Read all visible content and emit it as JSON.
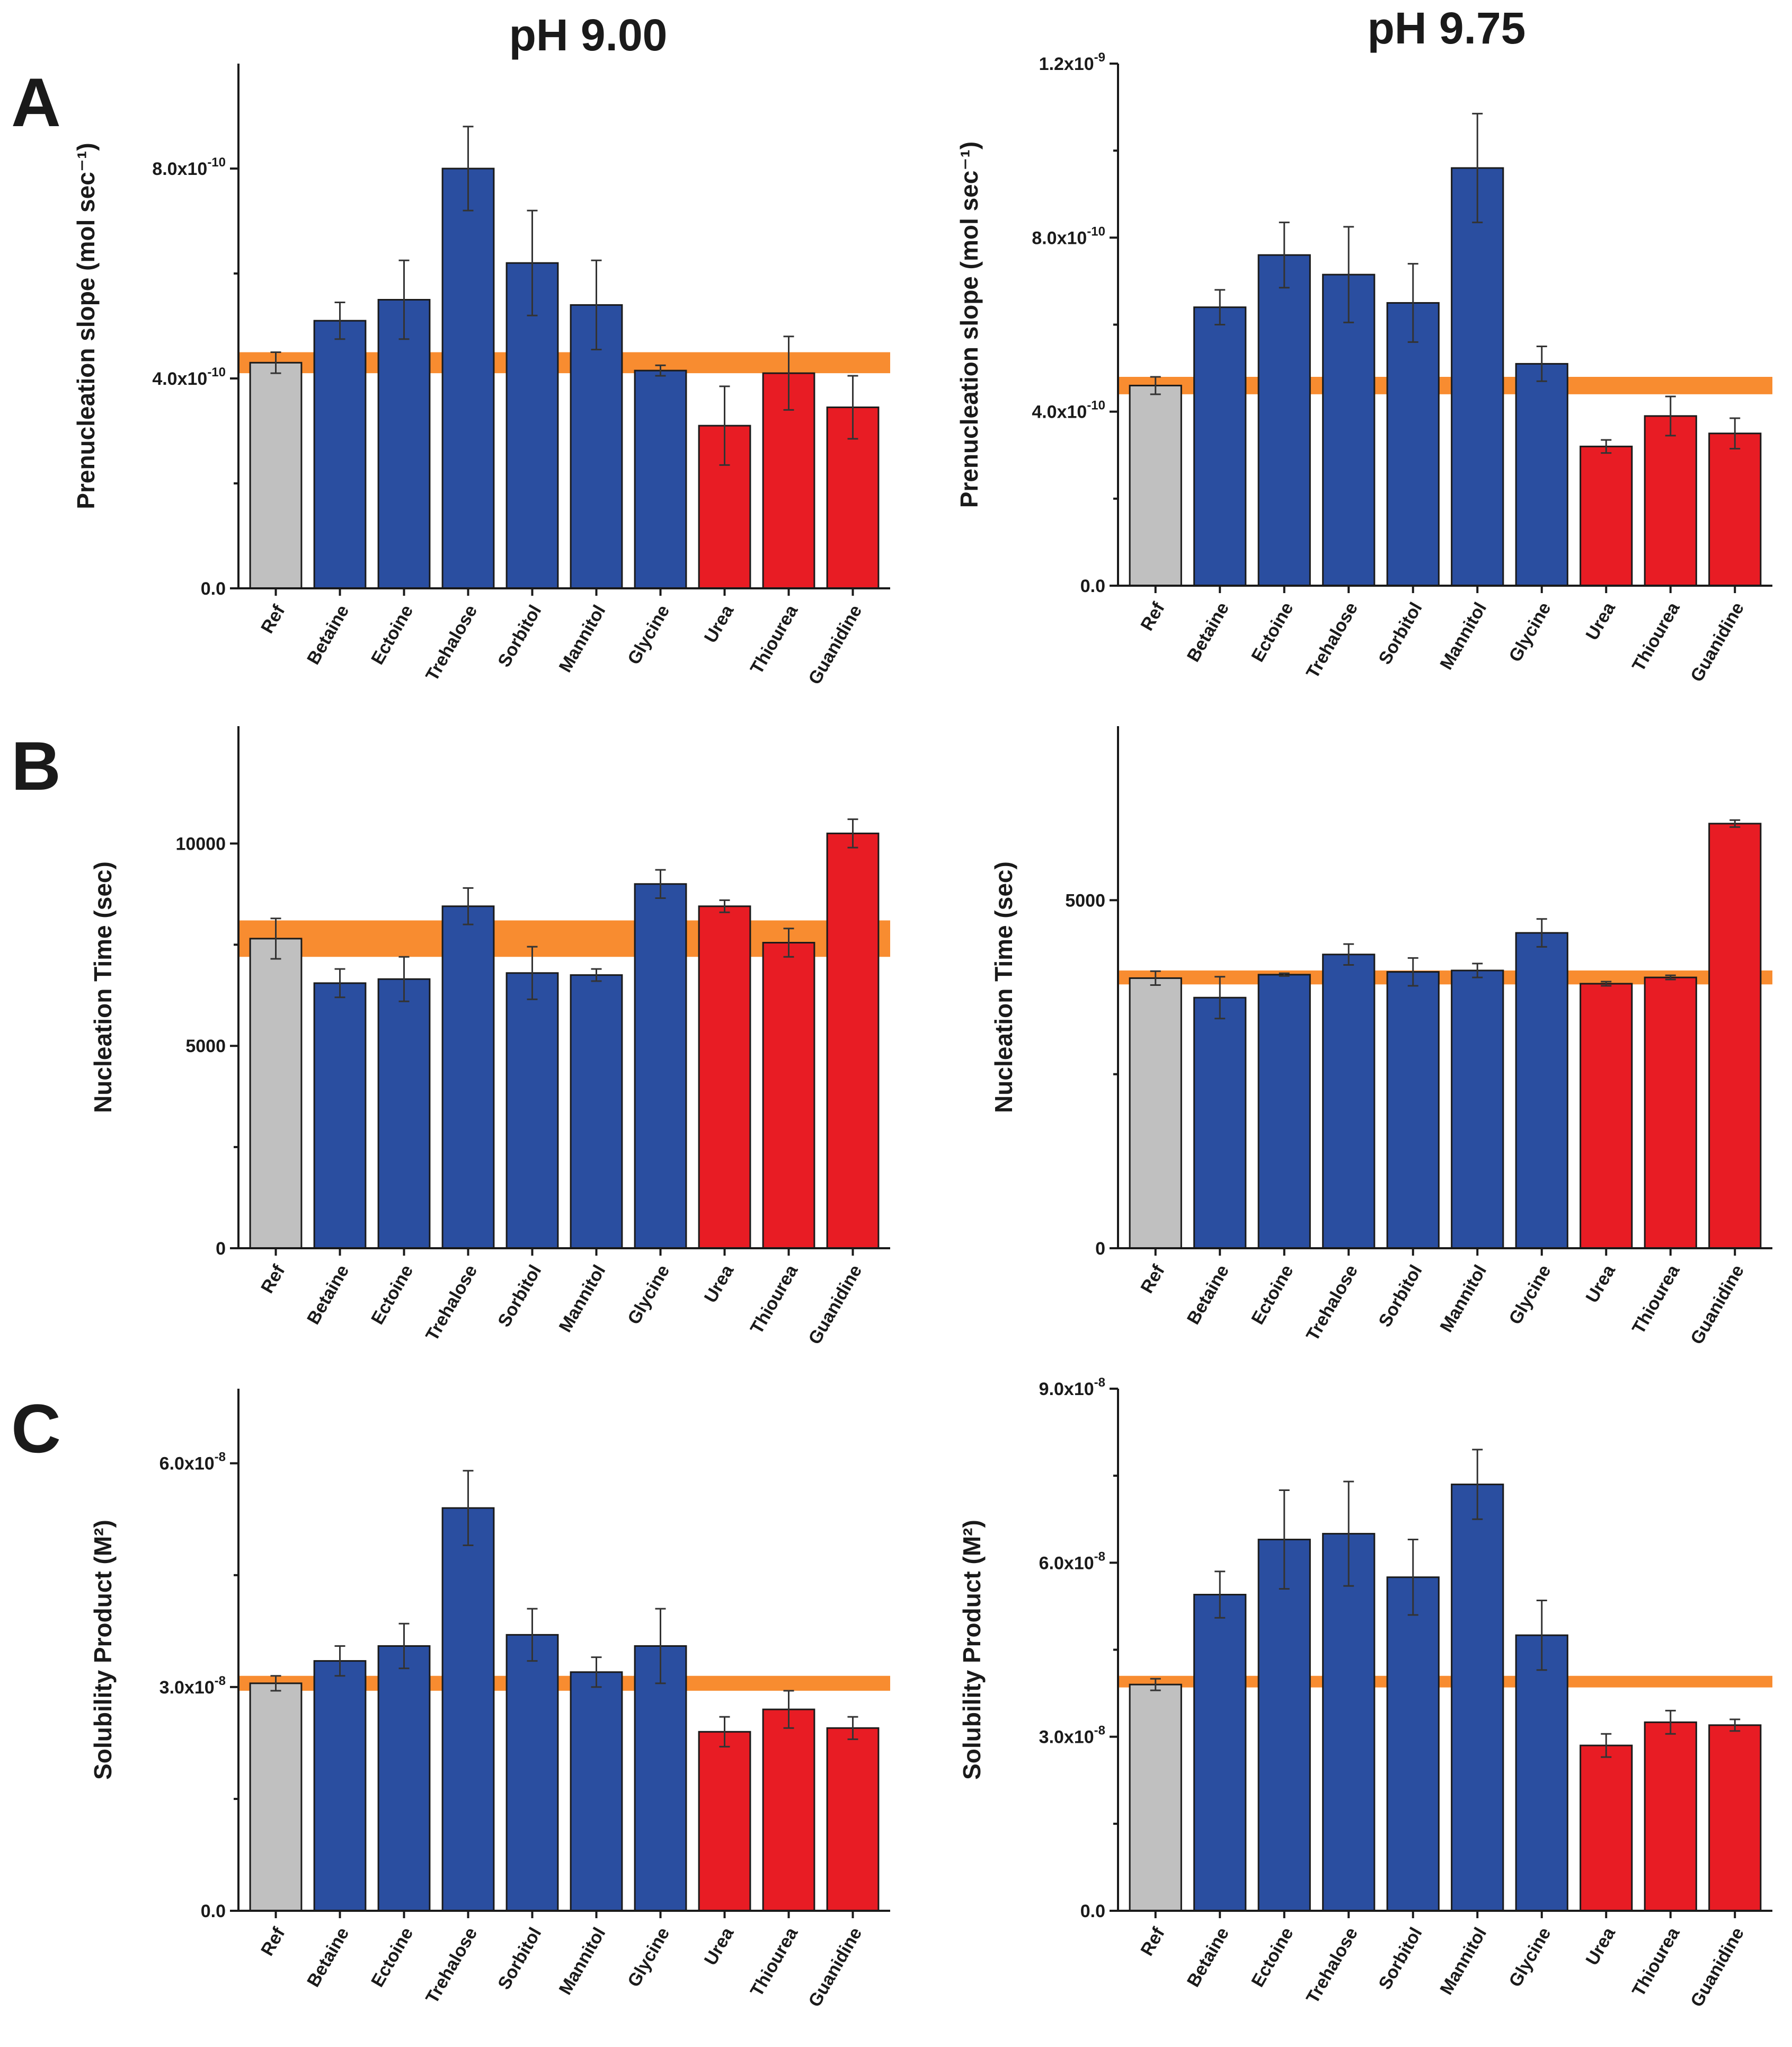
{
  "figure": {
    "column_titles": [
      "pH 9.00",
      "pH 9.75"
    ],
    "panel_letters": [
      "A",
      "B",
      "C"
    ]
  },
  "colors": {
    "reference": "#c0c0c0",
    "stabilizer": "#2a4ea0",
    "denaturant": "#e81c24",
    "band": "#f7821e",
    "axis": "#1a1a1a"
  },
  "chart_data": [
    {
      "type": "bar",
      "panel": "A",
      "condition": "pH 9.00",
      "ylabel": "Prenucleation slope (mol sec⁻¹)",
      "ylim": [
        0,
        1e-09
      ],
      "yticks": [
        0,
        4e-10,
        8e-10
      ],
      "ytick_labels": [
        "0.0",
        "4.0x10⁻¹⁰",
        "8.0x10⁻¹⁰"
      ],
      "categories": [
        "Ref",
        "Betaine",
        "Ectoine",
        "Trehalose",
        "Sorbitol",
        "Mannitol",
        "Glycine",
        "Urea",
        "Thiourea",
        "Guanidine"
      ],
      "groups": [
        "reference",
        "stabilizer",
        "stabilizer",
        "stabilizer",
        "stabilizer",
        "stabilizer",
        "stabilizer",
        "denaturant",
        "denaturant",
        "denaturant"
      ],
      "values": [
        4.3e-10,
        5.1e-10,
        5.5e-10,
        8e-10,
        6.2e-10,
        5.4e-10,
        4.15e-10,
        3.1e-10,
        4.1e-10,
        3.45e-10
      ],
      "errors": [
        2e-11,
        3.5e-11,
        7.5e-11,
        8e-11,
        1e-10,
        8.5e-11,
        1e-11,
        7.5e-11,
        7e-11,
        6e-11
      ],
      "reference_band": [
        4.1e-10,
        4.5e-10
      ]
    },
    {
      "type": "bar",
      "panel": "A",
      "condition": "pH 9.75",
      "ylabel": "Prenucleation slope (mol sec⁻¹)",
      "ylim": [
        0,
        1.2e-09
      ],
      "yticks": [
        0,
        4e-10,
        8e-10,
        1.2e-09
      ],
      "ytick_labels": [
        "0.0",
        "4.0x10⁻¹⁰",
        "8.0x10⁻¹⁰",
        "1.2x10⁻⁹"
      ],
      "categories": [
        "Ref",
        "Betaine",
        "Ectoine",
        "Trehalose",
        "Sorbitol",
        "Mannitol",
        "Glycine",
        "Urea",
        "Thiourea",
        "Guanidine"
      ],
      "groups": [
        "reference",
        "stabilizer",
        "stabilizer",
        "stabilizer",
        "stabilizer",
        "stabilizer",
        "stabilizer",
        "denaturant",
        "denaturant",
        "denaturant"
      ],
      "values": [
        4.6e-10,
        6.4e-10,
        7.6e-10,
        7.15e-10,
        6.5e-10,
        9.6e-10,
        5.1e-10,
        3.2e-10,
        3.9e-10,
        3.5e-10
      ],
      "errors": [
        2e-11,
        4e-11,
        7.5e-11,
        1.1e-10,
        9e-11,
        1.25e-10,
        4e-11,
        1.5e-11,
        4.5e-11,
        3.5e-11
      ],
      "reference_band": [
        4.4e-10,
        4.8e-10
      ]
    },
    {
      "type": "bar",
      "panel": "B",
      "condition": "pH 9.00",
      "ylabel": "Nucleation Time (sec)",
      "ylim": [
        0,
        12900
      ],
      "yticks": [
        0,
        5000,
        10000
      ],
      "ytick_labels": [
        "0",
        "5000",
        "10000"
      ],
      "categories": [
        "Ref",
        "Betaine",
        "Ectoine",
        "Trehalose",
        "Sorbitol",
        "Mannitol",
        "Glycine",
        "Urea",
        "Thiourea",
        "Guanidine"
      ],
      "groups": [
        "reference",
        "stabilizer",
        "stabilizer",
        "stabilizer",
        "stabilizer",
        "stabilizer",
        "stabilizer",
        "denaturant",
        "denaturant",
        "denaturant"
      ],
      "values": [
        7650,
        6550,
        6650,
        8450,
        6800,
        6750,
        9000,
        8450,
        7550,
        10250
      ],
      "errors": [
        500,
        350,
        550,
        450,
        650,
        150,
        350,
        150,
        350,
        350
      ],
      "reference_band": [
        7200,
        8100
      ]
    },
    {
      "type": "bar",
      "panel": "B",
      "condition": "pH 9.75",
      "ylabel": "Nucleation Time (sec)",
      "ylim": [
        0,
        7500
      ],
      "yticks": [
        0,
        5000
      ],
      "ytick_labels": [
        "0",
        "5000"
      ],
      "categories": [
        "Ref",
        "Betaine",
        "Ectoine",
        "Trehalose",
        "Sorbitol",
        "Mannitol",
        "Glycine",
        "Urea",
        "Thiourea",
        "Guanidine"
      ],
      "groups": [
        "reference",
        "stabilizer",
        "stabilizer",
        "stabilizer",
        "stabilizer",
        "stabilizer",
        "stabilizer",
        "denaturant",
        "denaturant",
        "denaturant"
      ],
      "values": [
        3880,
        3600,
        3930,
        4220,
        3970,
        3990,
        4530,
        3800,
        3890,
        6100
      ],
      "errors": [
        100,
        300,
        20,
        150,
        200,
        100,
        200,
        30,
        30,
        50
      ],
      "reference_band": [
        3790,
        3990
      ]
    },
    {
      "type": "bar",
      "panel": "C",
      "condition": "pH 9.00",
      "ylabel": "Solubility Product (M²)",
      "ylim": [
        0,
        7e-08
      ],
      "yticks": [
        0,
        3e-08,
        6e-08
      ],
      "ytick_labels": [
        "0.0",
        "3.0x10⁻⁸",
        "6.0x10⁻⁸"
      ],
      "categories": [
        "Ref",
        "Betaine",
        "Ectoine",
        "Trehalose",
        "Sorbitol",
        "Mannitol",
        "Glycine",
        "Urea",
        "Thiourea",
        "Guanidine"
      ],
      "groups": [
        "reference",
        "stabilizer",
        "stabilizer",
        "stabilizer",
        "stabilizer",
        "stabilizer",
        "stabilizer",
        "denaturant",
        "denaturant",
        "denaturant"
      ],
      "values": [
        3.05e-08,
        3.35e-08,
        3.55e-08,
        5.4e-08,
        3.7e-08,
        3.2e-08,
        3.55e-08,
        2.4e-08,
        2.7e-08,
        2.45e-08
      ],
      "errors": [
        1e-09,
        2e-09,
        3e-09,
        5e-09,
        3.5e-09,
        2e-09,
        5e-09,
        2e-09,
        2.5e-09,
        1.5e-09
      ],
      "reference_band": [
        2.95e-08,
        3.15e-08
      ]
    },
    {
      "type": "bar",
      "panel": "C",
      "condition": "pH 9.75",
      "ylabel": "Solubility Product (M²)",
      "ylim": [
        0,
        9e-08
      ],
      "yticks": [
        0,
        3e-08,
        6e-08,
        9e-08
      ],
      "ytick_labels": [
        "0.0",
        "3.0x10⁻⁸",
        "6.0x10⁻⁸",
        "9.0x10⁻⁸"
      ],
      "categories": [
        "Ref",
        "Betaine",
        "Ectoine",
        "Trehalose",
        "Sorbitol",
        "Mannitol",
        "Glycine",
        "Urea",
        "Thiourea",
        "Guanidine"
      ],
      "groups": [
        "reference",
        "stabilizer",
        "stabilizer",
        "stabilizer",
        "stabilizer",
        "stabilizer",
        "stabilizer",
        "denaturant",
        "denaturant",
        "denaturant"
      ],
      "values": [
        3.9e-08,
        5.45e-08,
        6.4e-08,
        6.5e-08,
        5.75e-08,
        7.35e-08,
        4.75e-08,
        2.85e-08,
        3.25e-08,
        3.2e-08
      ],
      "errors": [
        1e-09,
        4e-09,
        8.5e-09,
        9e-09,
        6.5e-09,
        6e-09,
        6e-09,
        2e-09,
        2e-09,
        1e-09
      ],
      "reference_band": [
        3.85e-08,
        4.05e-08
      ]
    }
  ]
}
